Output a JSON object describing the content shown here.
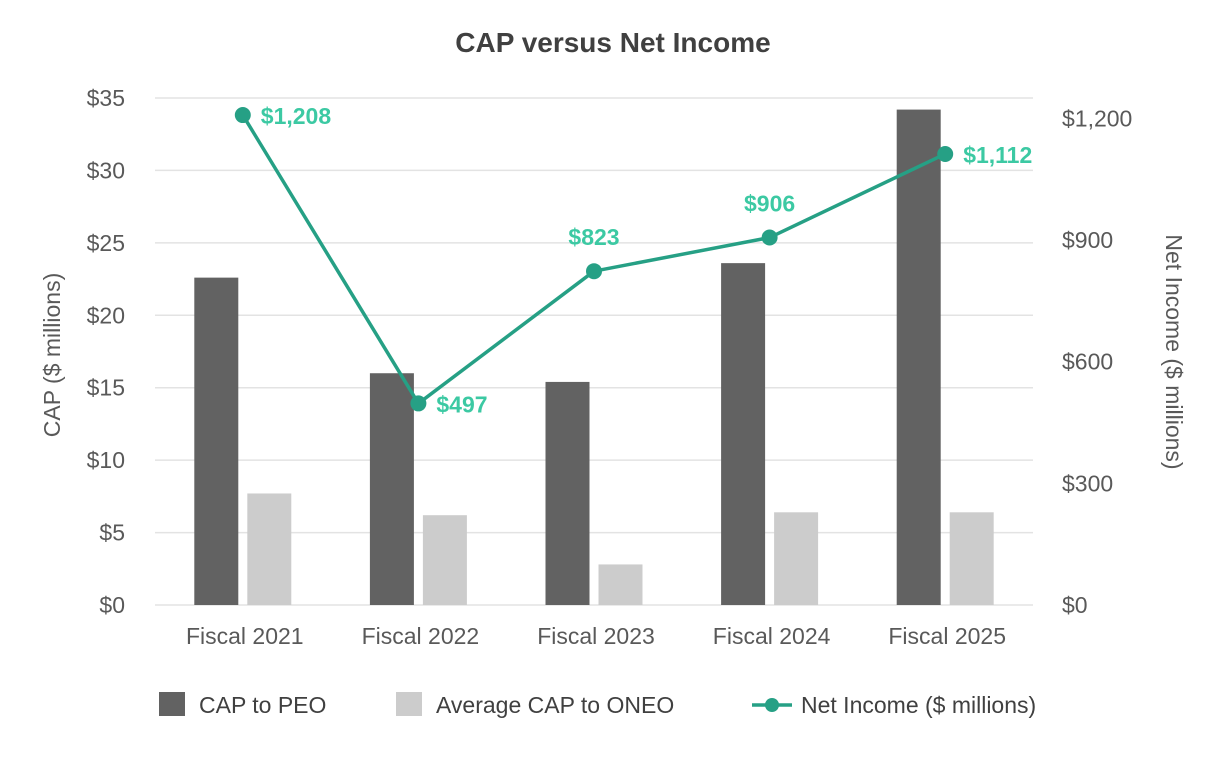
{
  "chart_data": {
    "type": "bar",
    "title": "CAP versus Net Income",
    "categories": [
      "Fiscal 2021",
      "Fiscal 2022",
      "Fiscal 2023",
      "Fiscal 2024",
      "Fiscal 2025"
    ],
    "ylabel": "CAP ($ millions)",
    "ylim": [
      0,
      35
    ],
    "yticks": [
      "$0",
      "$5",
      "$10",
      "$15",
      "$20",
      "$25",
      "$30",
      "$35"
    ],
    "y2label": "Net Income ($ millions)",
    "y2lim": [
      0,
      1250
    ],
    "y2ticks": [
      "$0",
      "$300",
      "$600",
      "$900",
      "$1,200"
    ],
    "grid": true,
    "legend_position": "bottom",
    "series": [
      {
        "name": "CAP to PEO",
        "type": "bar",
        "axis": "left",
        "color": "#626262",
        "values": [
          22.6,
          16.0,
          15.4,
          23.6,
          34.2
        ]
      },
      {
        "name": "Average CAP to ONEO",
        "type": "bar",
        "axis": "left",
        "color": "#cccccc",
        "values": [
          7.7,
          6.2,
          2.8,
          6.4,
          6.4
        ]
      },
      {
        "name": "Net Income ($ millions)",
        "type": "line",
        "axis": "right",
        "color": "#26a085",
        "values": [
          1208,
          497,
          823,
          906,
          1112
        ],
        "labels": [
          "$1,208",
          "$497",
          "$823",
          "$906",
          "$1,112"
        ]
      }
    ]
  }
}
